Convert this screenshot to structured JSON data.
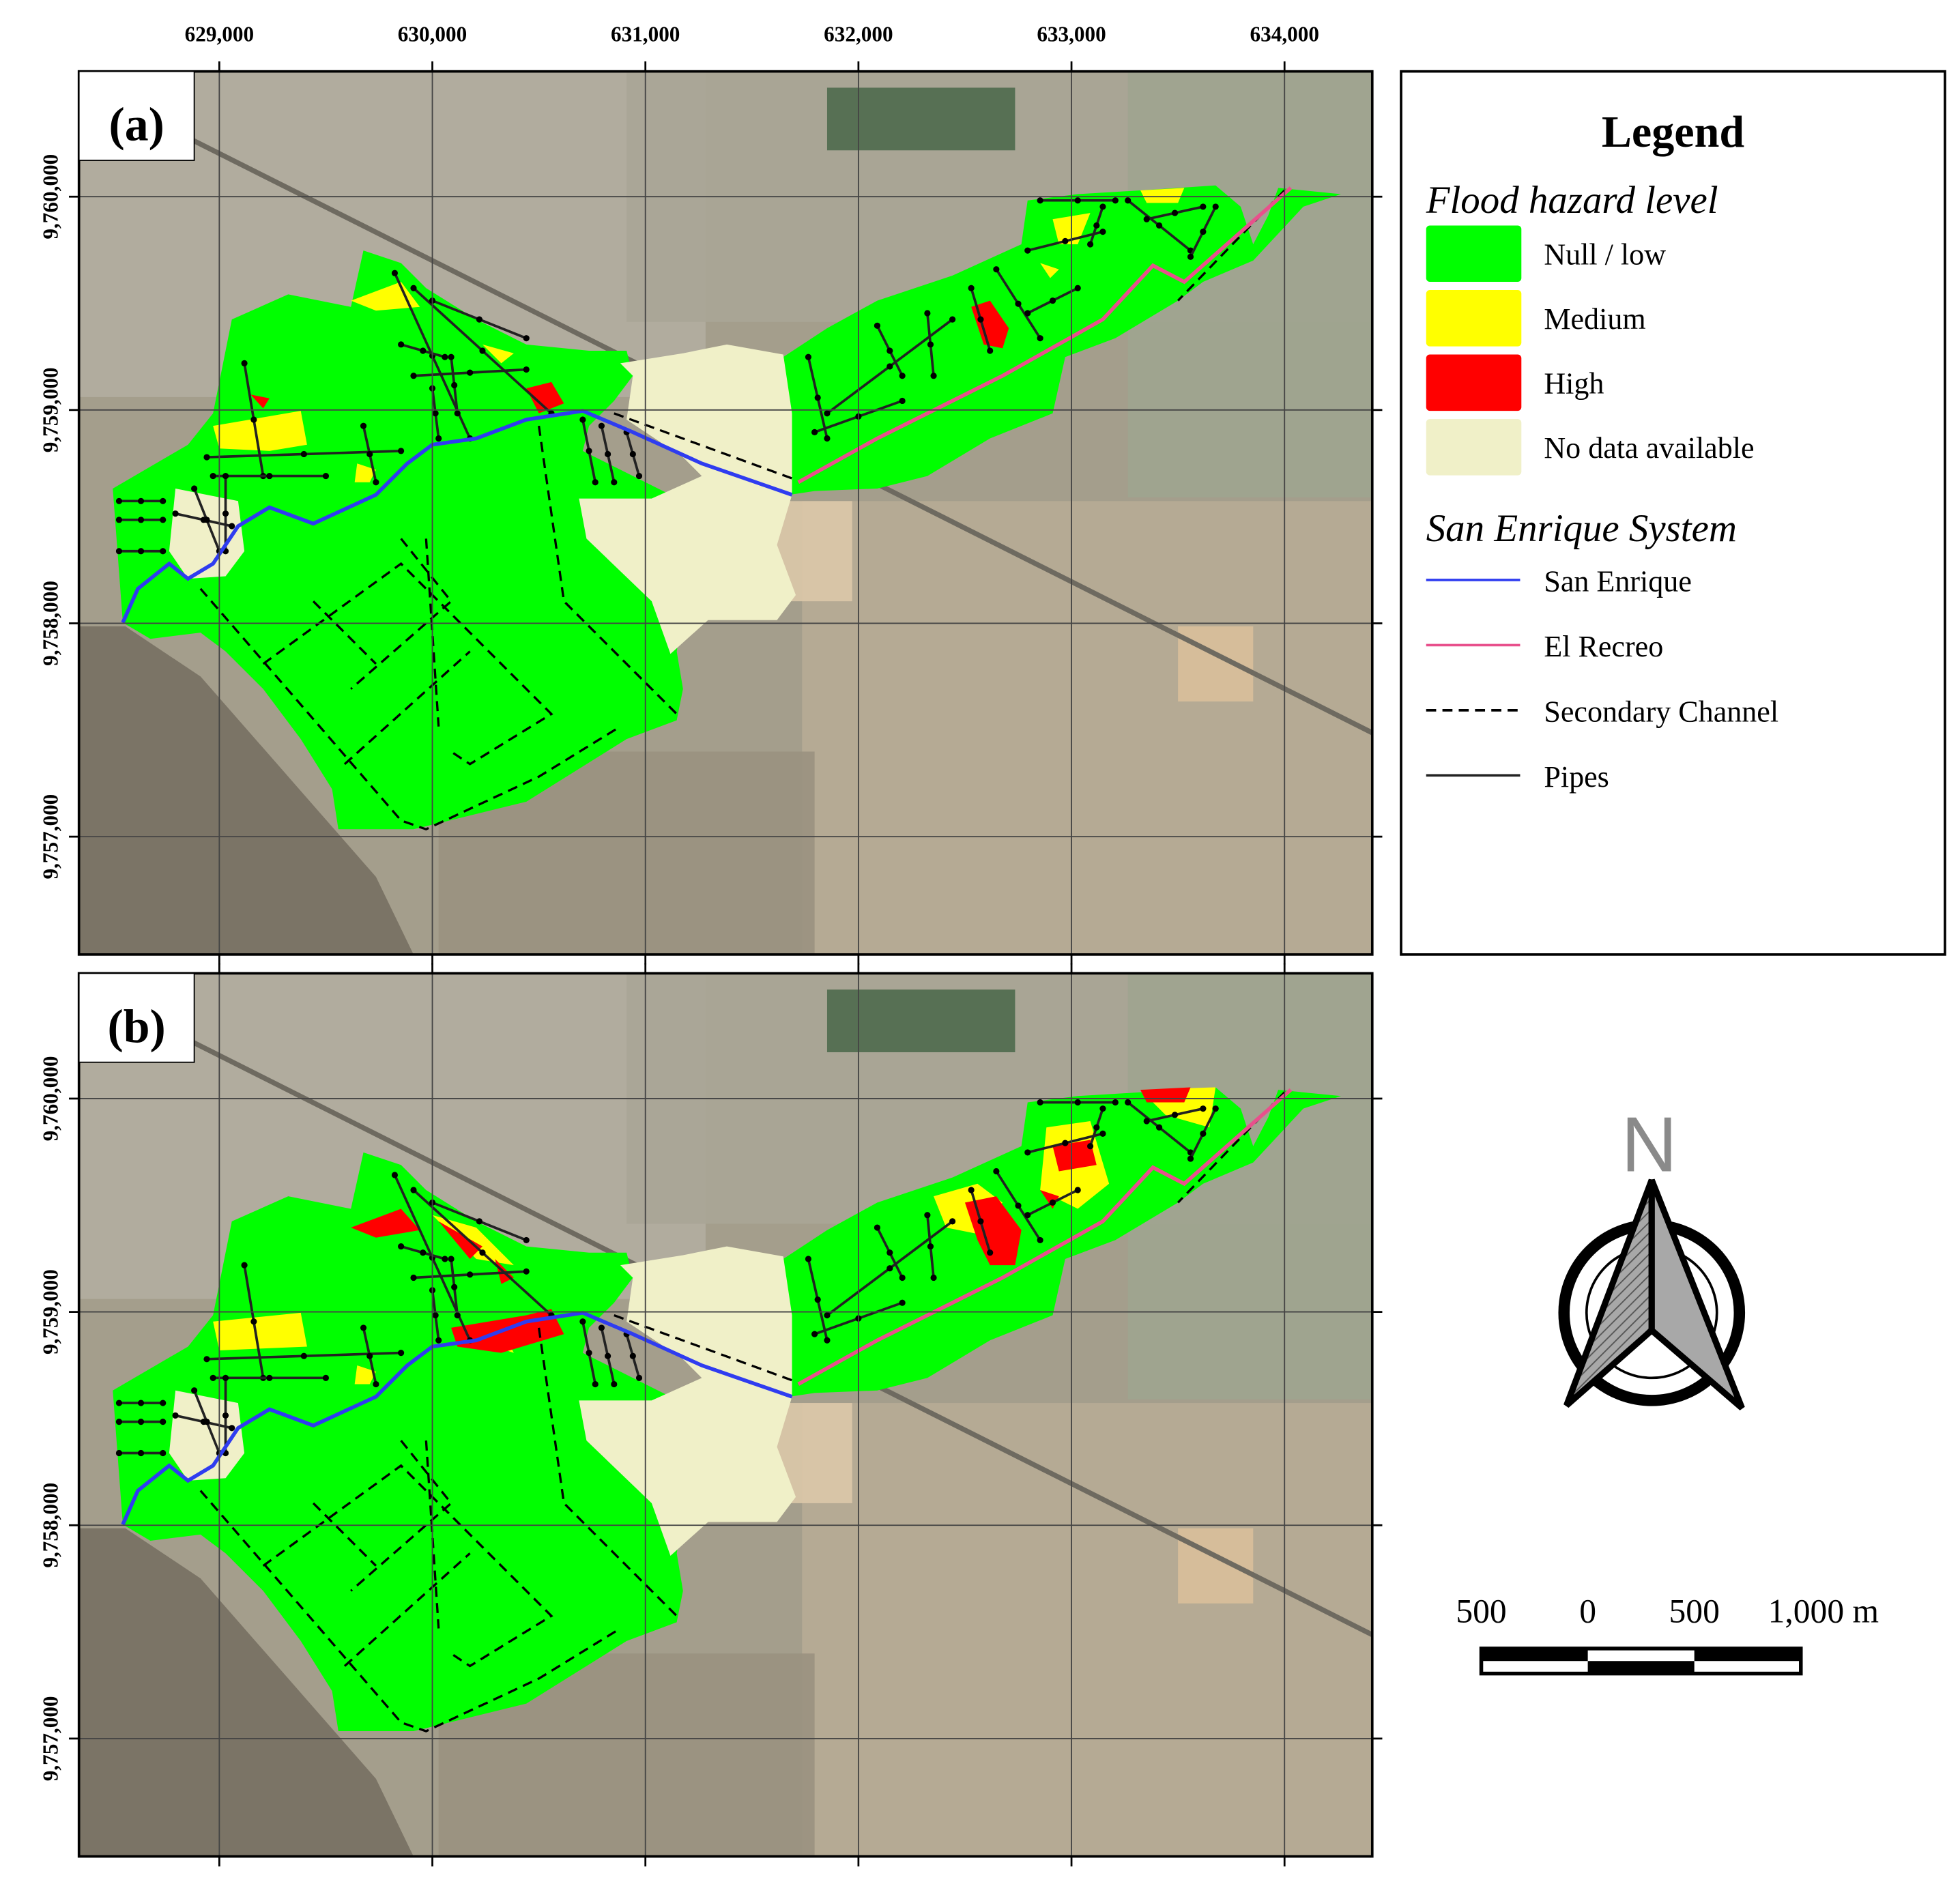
{
  "panels": [
    {
      "label": "(a)"
    },
    {
      "label": "(b)"
    }
  ],
  "x_ticks": [
    {
      "value": 629000,
      "label": "629,000"
    },
    {
      "value": 630000,
      "label": "630,000"
    },
    {
      "value": 631000,
      "label": "631,000"
    },
    {
      "value": 632000,
      "label": "632,000"
    },
    {
      "value": 633000,
      "label": "633,000"
    },
    {
      "value": 634000,
      "label": "634,000"
    }
  ],
  "y_ticks": [
    {
      "value": 9760000,
      "label": "9,760,000"
    },
    {
      "value": 9759000,
      "label": "9,759,000"
    },
    {
      "value": 9758000,
      "label": "9,758,000"
    },
    {
      "value": 9757000,
      "label": "9,757,000"
    }
  ],
  "legend": {
    "title": "Legend",
    "hazard_title": "Flood hazard level",
    "hazard_levels": [
      {
        "label": "Null / low",
        "color": "#00ff00"
      },
      {
        "label": "Medium",
        "color": "#ffff00"
      },
      {
        "label": "High",
        "color": "#ff0000"
      },
      {
        "label": "No data available",
        "color": "#f0f0c8"
      }
    ],
    "system_title": "San Enrique System",
    "system_items": [
      {
        "label": "San Enrique",
        "color": "#2f3cf0",
        "style": "solid"
      },
      {
        "label": "El Recreo",
        "color": "#e8508c",
        "style": "solid"
      },
      {
        "label": "Secondary Channel",
        "color": "#000000",
        "style": "dashed"
      },
      {
        "label": "Pipes",
        "color": "#222222",
        "style": "solid"
      }
    ]
  },
  "north_label": "N",
  "scale_bar": {
    "labels": [
      "500",
      "0",
      "500",
      "1,000 m"
    ]
  }
}
